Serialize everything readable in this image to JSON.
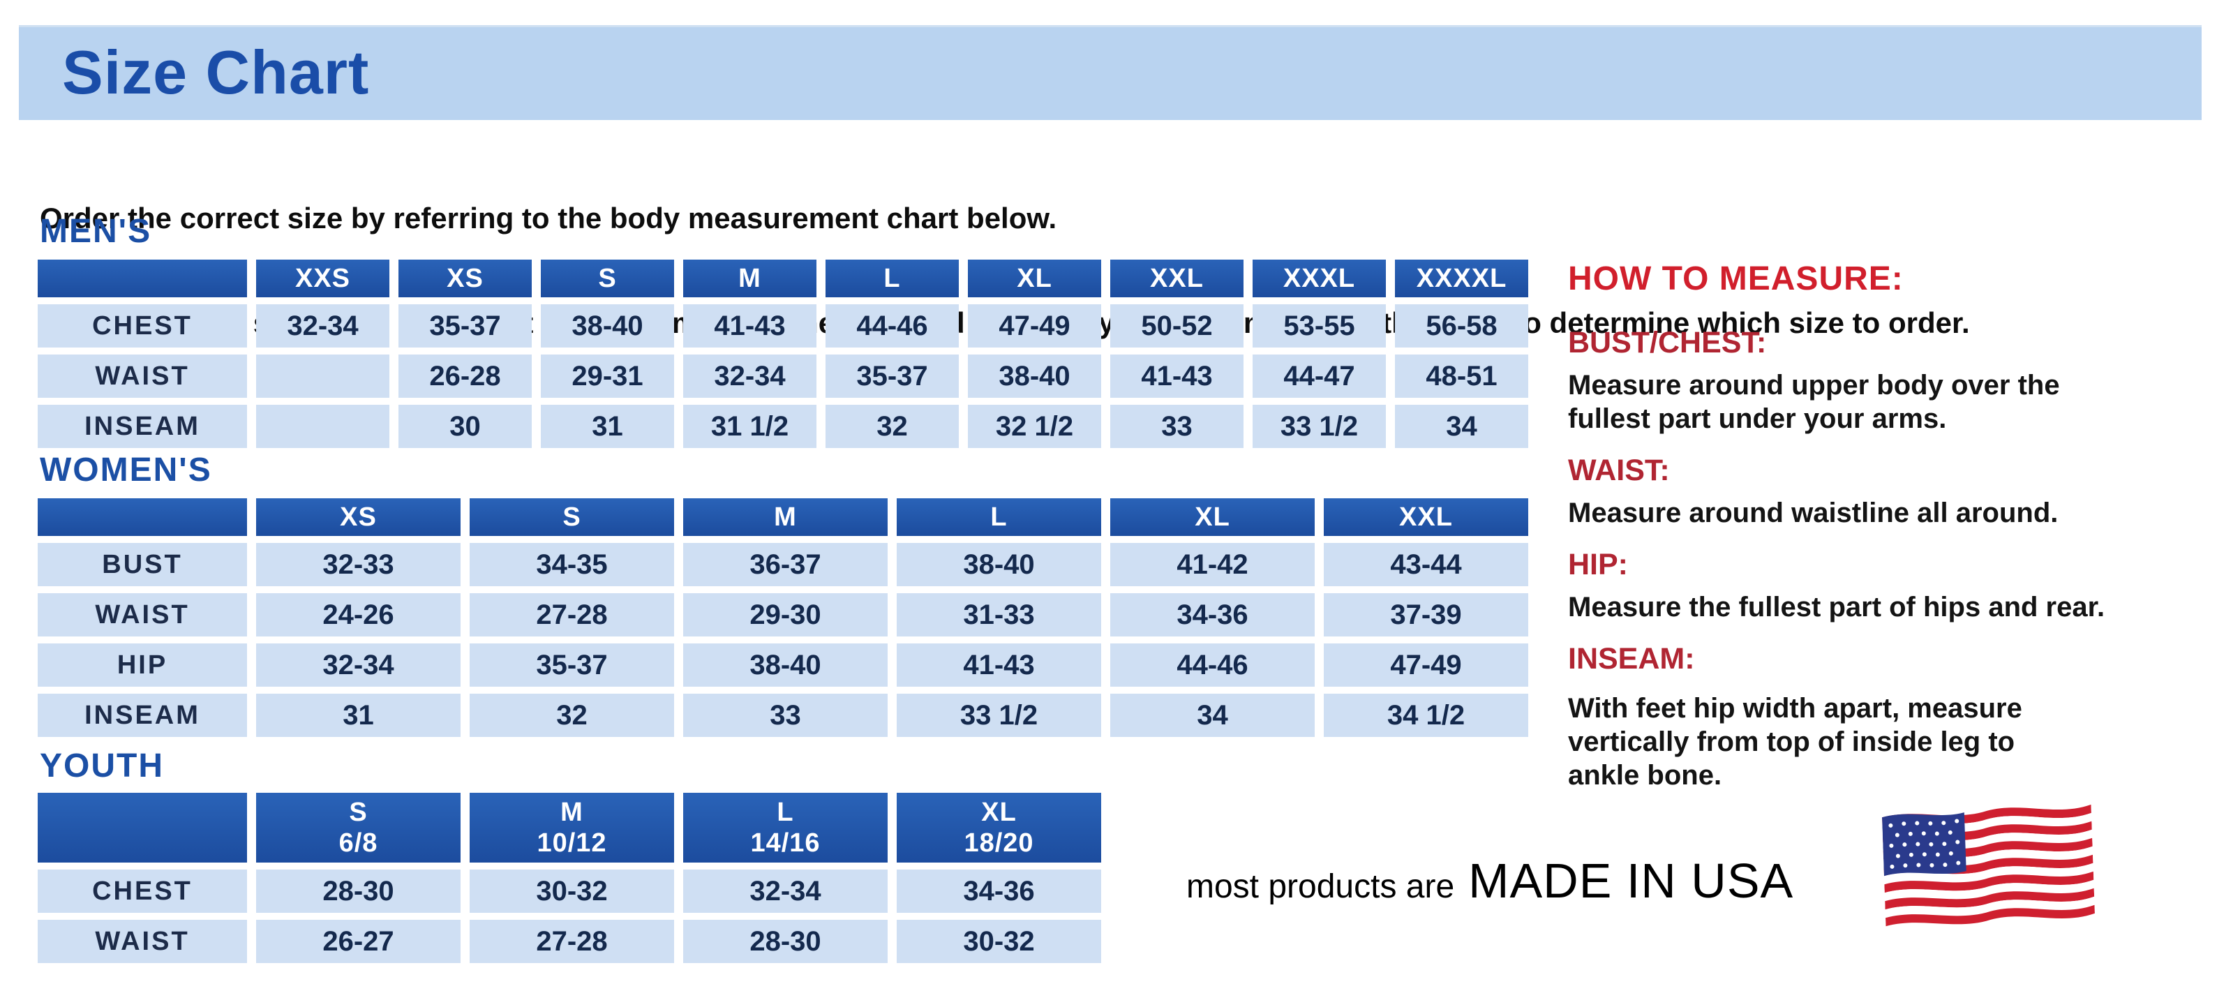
{
  "banner": {
    "title": "Size Chart"
  },
  "intro": {
    "line1": "Order the correct size by referring to the body measurement chart below.",
    "line2": "Measurements shown on size chart are body measurements.  Find your body measurements on the chart to determine which size to order."
  },
  "tables": {
    "mens": {
      "heading": "MEN'S",
      "columns": [
        "XXS",
        "XS",
        "S",
        "M",
        "L",
        "XL",
        "XXL",
        "XXXL",
        "XXXXL"
      ],
      "rows": [
        {
          "label": "CHEST",
          "values": [
            "32-34",
            "35-37",
            "38-40",
            "41-43",
            "44-46",
            "47-49",
            "50-52",
            "53-55",
            "56-58"
          ]
        },
        {
          "label": "WAIST",
          "values": [
            "",
            "26-28",
            "29-31",
            "32-34",
            "35-37",
            "38-40",
            "41-43",
            "44-47",
            "48-51"
          ]
        },
        {
          "label": "INSEAM",
          "values": [
            "",
            "30",
            "31",
            "31 1/2",
            "32",
            "32 1/2",
            "33",
            "33 1/2",
            "34"
          ]
        }
      ]
    },
    "womens": {
      "heading": "WOMEN'S",
      "columns": [
        "XS",
        "S",
        "M",
        "L",
        "XL",
        "XXL"
      ],
      "rows": [
        {
          "label": "BUST",
          "values": [
            "32-33",
            "34-35",
            "36-37",
            "38-40",
            "41-42",
            "43-44"
          ]
        },
        {
          "label": "WAIST",
          "values": [
            "24-26",
            "27-28",
            "29-30",
            "31-33",
            "34-36",
            "37-39"
          ]
        },
        {
          "label": "HIP",
          "values": [
            "32-34",
            "35-37",
            "38-40",
            "41-43",
            "44-46",
            "47-49"
          ]
        },
        {
          "label": "INSEAM",
          "values": [
            "31",
            "32",
            "33",
            "33 1/2",
            "34",
            "34 1/2"
          ]
        }
      ]
    },
    "youth": {
      "heading": "YOUTH",
      "columns": [
        "S\n6/8",
        "M\n10/12",
        "L\n14/16",
        "XL\n18/20"
      ],
      "rows": [
        {
          "label": "CHEST",
          "values": [
            "28-30",
            "30-32",
            "32-34",
            "34-36"
          ]
        },
        {
          "label": "WAIST",
          "values": [
            "26-27",
            "27-28",
            "28-30",
            "30-32"
          ]
        }
      ]
    }
  },
  "how_to_measure": {
    "heading": "HOW TO MEASURE:",
    "sections": [
      {
        "label": "BUST/CHEST:",
        "text": "Measure around upper body over the\nfullest part under your arms."
      },
      {
        "label": "WAIST:",
        "text": "Measure around waistline all around."
      },
      {
        "label": "HIP:",
        "text": "Measure the fullest part of hips and rear."
      },
      {
        "label": "INSEAM:",
        "text": "With feet hip width apart, measure\nvertically from top of inside leg to\nankle bone."
      }
    ]
  },
  "footer": {
    "prefix": "most products are",
    "made_in": "MADE IN USA",
    "flag": "us-flag-icon"
  },
  "colors": {
    "banner_blue": "#b9d3f0",
    "accent_blue": "#1b4fa5",
    "header_blue": "#1c4c9e",
    "cell_blue": "#cfdff3",
    "cell_text_navy": "#14294d",
    "red_heading": "#d11f2c",
    "red_label": "#b02532"
  }
}
